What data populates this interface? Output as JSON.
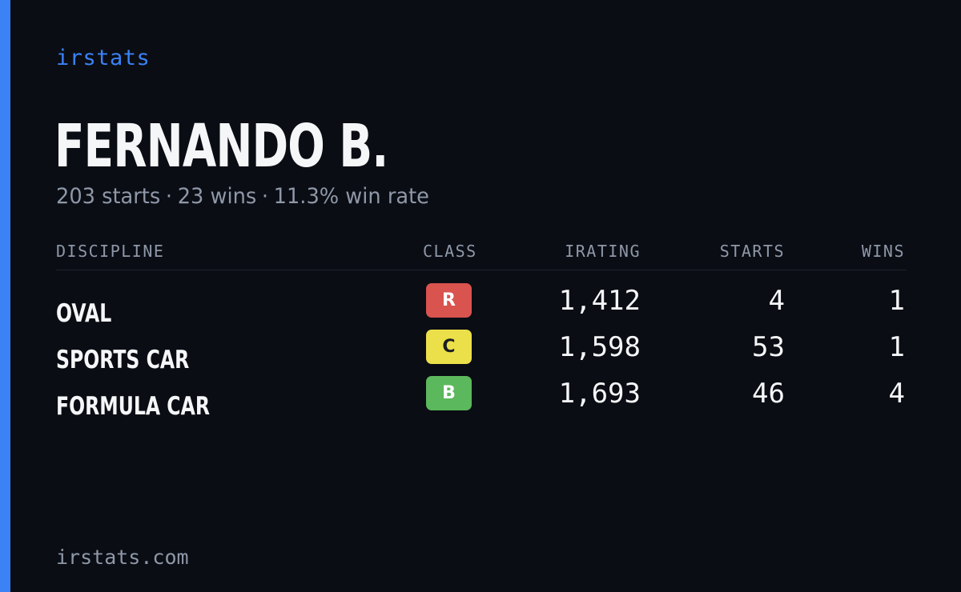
{
  "brand": "irstats",
  "player": {
    "name": "FERNANDO B.",
    "starts_text": "203 starts",
    "wins_text": "23 wins",
    "winrate_text": "11.3% win rate",
    "separator": "·"
  },
  "table": {
    "headers": {
      "discipline": "DISCIPLINE",
      "class": "CLASS",
      "irating": "IRATING",
      "starts": "STARTS",
      "wins": "WINS"
    },
    "rows": [
      {
        "discipline": "OVAL",
        "class": "R",
        "class_color": "#d9534f",
        "class_text_color": "#ffffff",
        "irating": "1,412",
        "starts": "4",
        "wins": "1"
      },
      {
        "discipline": "SPORTS CAR",
        "class": "C",
        "class_color": "#ece04a",
        "class_text_color": "#1a1d24",
        "irating": "1,598",
        "starts": "53",
        "wins": "1"
      },
      {
        "discipline": "FORMULA CAR",
        "class": "B",
        "class_color": "#5cb85c",
        "class_text_color": "#ffffff",
        "irating": "1,693",
        "starts": "46",
        "wins": "4"
      }
    ]
  },
  "footer": "irstats.com",
  "colors": {
    "accent": "#3b82f6",
    "background": "#0a0d14",
    "muted": "#8f98a8",
    "text": "#f5f6f8"
  }
}
